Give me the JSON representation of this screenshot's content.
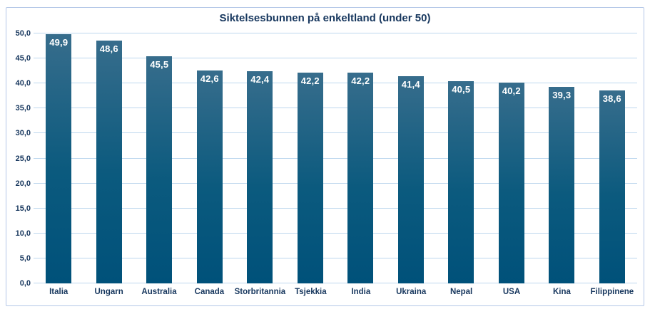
{
  "chart_data": {
    "type": "bar",
    "title": "Siktelsesbunnen på enkeltland (under 50)",
    "categories": [
      "Italia",
      "Ungarn",
      "Australia",
      "Canada",
      "Storbritannia",
      "Tsjekkia",
      "India",
      "Ukraina",
      "Nepal",
      "USA",
      "Kina",
      "Filippinene"
    ],
    "values": [
      49.9,
      48.6,
      45.5,
      42.6,
      42.4,
      42.2,
      42.2,
      41.4,
      40.5,
      40.2,
      39.3,
      38.6
    ],
    "value_labels": [
      "49,9",
      "48,6",
      "45,5",
      "42,6",
      "42,4",
      "42,2",
      "42,2",
      "41,4",
      "40,5",
      "40,2",
      "39,3",
      "38,6"
    ],
    "xlabel": "",
    "ylabel": "",
    "ylim": [
      0,
      50
    ],
    "y_step": 5,
    "y_ticks": [
      {
        "value": 0,
        "label": "0,0"
      },
      {
        "value": 5,
        "label": "5,0"
      },
      {
        "value": 10,
        "label": "10,0"
      },
      {
        "value": 15,
        "label": "15,0"
      },
      {
        "value": 20,
        "label": "20,0"
      },
      {
        "value": 25,
        "label": "25,0"
      },
      {
        "value": 30,
        "label": "30,0"
      },
      {
        "value": 35,
        "label": "35,0"
      },
      {
        "value": 40,
        "label": "40,0"
      },
      {
        "value": 45,
        "label": "45,0"
      },
      {
        "value": 50,
        "label": "50,0"
      }
    ],
    "grid": true,
    "legend_position": "none",
    "number_format": "comma-decimal"
  },
  "colors": {
    "text": "#17375E",
    "gridline": "#BDD7EE",
    "frame_border": "#B4C7E7",
    "bar_top": "#376D8C",
    "bar_mid": "#0B5A7E",
    "bar_bottom": "#00517A",
    "value_label": "#FFFFFF",
    "background": "#FFFFFF"
  }
}
